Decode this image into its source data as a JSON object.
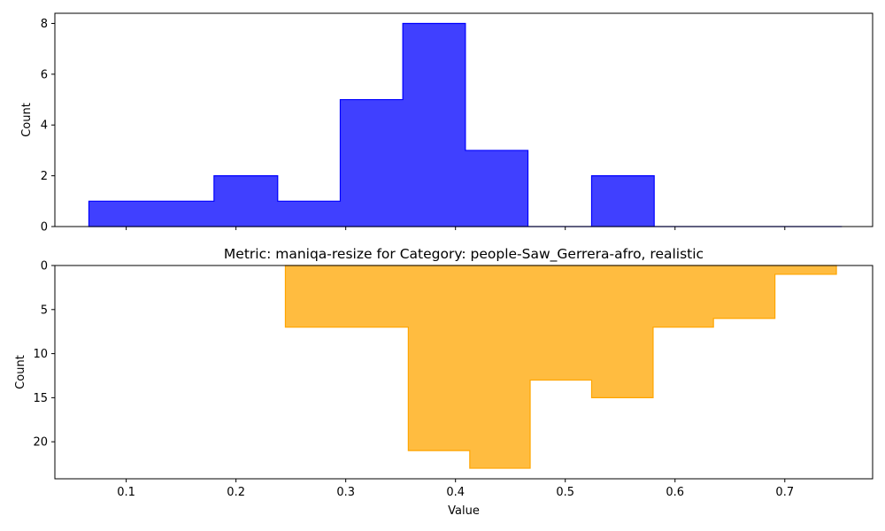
{
  "chart_data": [
    {
      "type": "histogram",
      "title": "",
      "xlabel": "",
      "ylabel": "Count",
      "xlim": [
        0.035,
        0.78
      ],
      "ylim": [
        0,
        8.4
      ],
      "y_inverted": false,
      "grid": false,
      "series": [
        {
          "color": "#0000ff",
          "alpha": 0.75,
          "bin_edges": [
            0.066,
            0.123,
            0.18,
            0.238,
            0.295,
            0.352,
            0.409,
            0.466,
            0.524,
            0.581,
            0.638,
            0.695,
            0.752
          ],
          "counts": [
            1,
            1,
            2,
            1,
            5,
            8,
            3,
            0,
            2,
            0,
            0,
            0
          ]
        }
      ],
      "x_ticks": [
        "0.1",
        "0.2",
        "0.3",
        "0.4",
        "0.5",
        "0.6",
        "0.7"
      ],
      "y_ticks": [
        "0",
        "2",
        "4",
        "6",
        "8"
      ]
    },
    {
      "type": "histogram",
      "title": "Metric: maniqa-resize for Category: people-Saw_Gerrera-afro, realistic",
      "xlabel": "Value",
      "ylabel": "Count",
      "xlim": [
        0.035,
        0.78
      ],
      "ylim": [
        0,
        24.2
      ],
      "y_inverted": true,
      "grid": false,
      "series": [
        {
          "color": "#ffa500",
          "alpha": 0.75,
          "bin_edges": [
            0.245,
            0.301,
            0.357,
            0.413,
            0.468,
            0.524,
            0.58,
            0.635,
            0.691,
            0.747
          ],
          "counts": [
            7,
            7,
            21,
            23,
            13,
            15,
            7,
            6,
            1
          ]
        }
      ],
      "x_ticks": [
        "0.1",
        "0.2",
        "0.3",
        "0.4",
        "0.5",
        "0.6",
        "0.7"
      ],
      "y_ticks": [
        "0",
        "5",
        "10",
        "15",
        "20"
      ]
    }
  ]
}
